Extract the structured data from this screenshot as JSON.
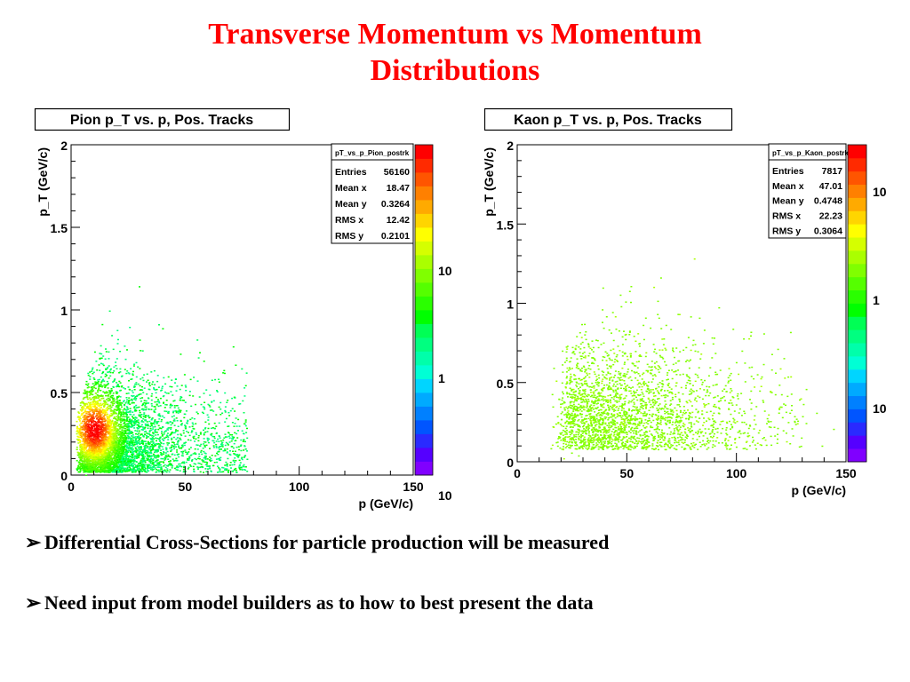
{
  "slide": {
    "title_line1": "Transverse Momentum vs Momentum",
    "title_line2": "Distributions",
    "bullet_marker": "➢",
    "bullets": [
      "Differential Cross-Sections for particle production will be measured",
      "Need input from model builders as to how to best present the data"
    ]
  },
  "colors": {
    "title": "#ff0000",
    "palette": [
      "#8000ff",
      "#5500ff",
      "#2a2aff",
      "#0055ff",
      "#0080ff",
      "#00aaff",
      "#00d5ff",
      "#00ffd5",
      "#00ffaa",
      "#00ff80",
      "#00ff55",
      "#00ff00",
      "#2aff00",
      "#55ff00",
      "#80ff00",
      "#aaff00",
      "#d5ff00",
      "#ffff00",
      "#ffd500",
      "#ffaa00",
      "#ff8000",
      "#ff5500",
      "#ff2a00",
      "#ff0000"
    ]
  },
  "chart_data": [
    {
      "type": "heatmap",
      "title": "Pion p_T vs. p, Pos. Tracks",
      "xlabel": "p (GeV/c)",
      "ylabel": "p_T (GeV/c)",
      "xlim": [
        0,
        150
      ],
      "ylim": [
        0,
        2
      ],
      "x_ticks": [
        "0",
        "50",
        "100",
        "150"
      ],
      "y_ticks": [
        "0",
        "0.5",
        "1",
        "1.5",
        "2"
      ],
      "z_scale": "log",
      "z_tick_labels": [
        "10",
        "1",
        "10"
      ],
      "stats": {
        "name": "pT_vs_p_Pion_postrk",
        "rows": [
          {
            "label": "Entries",
            "value": "56160"
          },
          {
            "label": "Mean x",
            "value": "18.47"
          },
          {
            "label": "Mean y",
            "value": "0.3264"
          },
          {
            "label": "RMS x",
            "value": "12.42"
          },
          {
            "label": "RMS y",
            "value": "0.2101"
          }
        ]
      }
    },
    {
      "type": "heatmap",
      "title": "Kaon p_T vs. p, Pos. Tracks",
      "xlabel": "p (GeV/c)",
      "ylabel": "p_T (GeV/c)",
      "xlim": [
        0,
        150
      ],
      "ylim": [
        0,
        2
      ],
      "x_ticks": [
        "0",
        "50",
        "100",
        "150"
      ],
      "y_ticks": [
        "0",
        "0.5",
        "1",
        "1.5",
        "2"
      ],
      "z_scale": "log",
      "z_tick_labels": [
        "10",
        "1",
        "10"
      ],
      "stats": {
        "name": "pT_vs_p_Kaon_postrk",
        "rows": [
          {
            "label": "Entries",
            "value": "7817"
          },
          {
            "label": "Mean x",
            "value": "47.01"
          },
          {
            "label": "Mean y",
            "value": "0.4748"
          },
          {
            "label": "RMS x",
            "value": "22.23"
          },
          {
            "label": "RMS y",
            "value": "0.3064"
          }
        ]
      }
    }
  ]
}
